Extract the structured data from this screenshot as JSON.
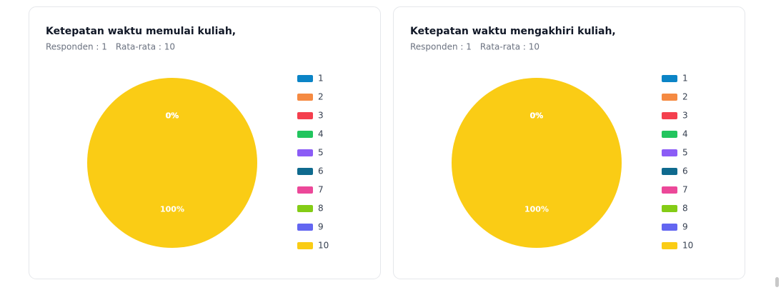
{
  "chart_data": [
    {
      "type": "pie",
      "title": "Ketepatan waktu memulai kuliah,",
      "notes": [
        "Responden : 1",
        "Rata-rata : 10"
      ],
      "categories": [
        "1",
        "2",
        "3",
        "4",
        "5",
        "6",
        "7",
        "8",
        "9",
        "10"
      ],
      "values": [
        0,
        0,
        0,
        0,
        0,
        0,
        0,
        0,
        0,
        100
      ],
      "value_labels": [
        "0%",
        "0%",
        "0%",
        "0%",
        "0%",
        "0%",
        "0%",
        "0%",
        "0%",
        "100%"
      ],
      "colors": [
        "#0b84c6",
        "#f58a42",
        "#f43f4e",
        "#22c55e",
        "#8b5cf6",
        "#0f6a8e",
        "#ec4899",
        "#84cc16",
        "#6366f1",
        "#facc15"
      ],
      "legend": "right"
    },
    {
      "type": "pie",
      "title": "Ketepatan waktu mengakhiri kuliah,",
      "notes": [
        "Responden : 1",
        "Rata-rata : 10"
      ],
      "categories": [
        "1",
        "2",
        "3",
        "4",
        "5",
        "6",
        "7",
        "8",
        "9",
        "10"
      ],
      "values": [
        0,
        0,
        0,
        0,
        0,
        0,
        0,
        0,
        0,
        100
      ],
      "value_labels": [
        "0%",
        "0%",
        "0%",
        "0%",
        "0%",
        "0%",
        "0%",
        "0%",
        "0%",
        "100%"
      ],
      "colors": [
        "#0b84c6",
        "#f58a42",
        "#f43f4e",
        "#22c55e",
        "#8b5cf6",
        "#0f6a8e",
        "#ec4899",
        "#84cc16",
        "#6366f1",
        "#facc15"
      ],
      "legend": "right"
    }
  ]
}
